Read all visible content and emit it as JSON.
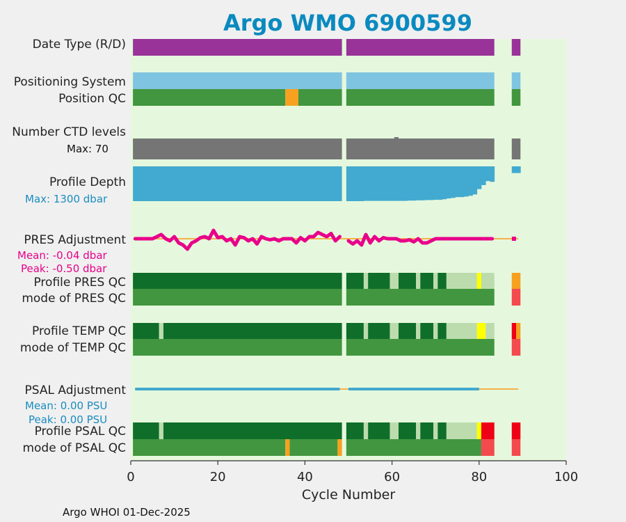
{
  "title": "Argo WMO 6900599",
  "footer": "Argo WHOI 01-Dec-2025",
  "colors": {
    "title": "#0a8abf",
    "panel_bg": "#e5f8dd",
    "data_type": "#993399",
    "positioning": "#7fc4e0",
    "qc_good": "#42963f",
    "qc_dark": "#0f6e2a",
    "qc_light": "#bcdcae",
    "qc_orange": "#f6a11f",
    "qc_yellow": "#ffff00",
    "qc_red": "#ee0016",
    "qc_redsoft": "#f44a4d",
    "ctd": "#757575",
    "depth": "#42aad0",
    "pres_adj": "#e8008a",
    "psal_adj": "#42aad0",
    "zero_line": "#f6b04a"
  },
  "labels": {
    "date_type": "Date Type (R/D)",
    "positioning_system": "Positioning System",
    "position_qc": "Position QC",
    "number_ctd": "Number CTD levels",
    "ctd_max": "Max: 70",
    "profile_depth": "Profile Depth",
    "depth_max": "Max: 1300 dbar",
    "pres_adjustment": "PRES Adjustment",
    "pres_mean": "Mean: -0.04 dbar",
    "pres_peak": "Peak: -0.50 dbar",
    "profile_pres_qc": "Profile PRES QC",
    "mode_pres_qc": "mode of PRES QC",
    "profile_temp_qc": "Profile TEMP QC",
    "mode_temp_qc": "mode of TEMP QC",
    "psal_adjustment": "PSAL Adjustment",
    "psal_mean": "Mean: 0.00 PSU",
    "psal_peak": "Peak: 0.00 PSU",
    "profile_psal_qc": "Profile PSAL QC",
    "mode_psal_qc": "mode of PSAL QC"
  },
  "chart_data": {
    "type": "status-strip",
    "xlabel": "Cycle Number",
    "xlim": [
      0,
      100
    ],
    "xticks": [
      0,
      20,
      40,
      60,
      80,
      100
    ],
    "grid": false,
    "rows": [
      {
        "key": "date_type",
        "segments": [
          [
            0.5,
            48.5,
            "data_type"
          ],
          [
            49.5,
            83.5,
            "data_type"
          ],
          [
            87.5,
            89.5,
            "data_type"
          ]
        ]
      },
      {
        "key": "positioning",
        "segments": [
          [
            0.5,
            48.5,
            "positioning"
          ],
          [
            49.5,
            83.5,
            "positioning"
          ],
          [
            87.5,
            89.5,
            "positioning"
          ]
        ]
      },
      {
        "key": "position_qc",
        "segments": [
          [
            0.5,
            35.5,
            "qc_good"
          ],
          [
            35.5,
            38.5,
            "qc_orange"
          ],
          [
            38.5,
            48.5,
            "qc_good"
          ],
          [
            49.5,
            83.5,
            "qc_good"
          ],
          [
            87.5,
            89.5,
            "qc_good"
          ]
        ]
      },
      {
        "key": "ctd_levels",
        "segments": [
          [
            0.5,
            48.5,
            "ctd"
          ],
          [
            49.5,
            83.5,
            "ctd"
          ],
          [
            87.5,
            89.5,
            "ctd"
          ]
        ]
      },
      {
        "key": "profile_pres_qc",
        "segments": [
          [
            0.5,
            48.5,
            "qc_dark"
          ],
          [
            49.5,
            53.5,
            "qc_dark"
          ],
          [
            53.5,
            54.5,
            "qc_light"
          ],
          [
            54.5,
            59.5,
            "qc_dark"
          ],
          [
            59.5,
            61.5,
            "qc_light"
          ],
          [
            61.5,
            65.5,
            "qc_dark"
          ],
          [
            65.5,
            66.5,
            "qc_light"
          ],
          [
            66.5,
            69.5,
            "qc_dark"
          ],
          [
            69.5,
            70.5,
            "qc_light"
          ],
          [
            70.5,
            72.5,
            "qc_dark"
          ],
          [
            72.5,
            79.5,
            "qc_light"
          ],
          [
            79.5,
            80.5,
            "qc_yellow"
          ],
          [
            80.5,
            83.5,
            "qc_light"
          ],
          [
            87.5,
            89.5,
            "qc_orange"
          ]
        ]
      },
      {
        "key": "mode_pres_qc",
        "segments": [
          [
            0.5,
            48.5,
            "qc_good"
          ],
          [
            49.5,
            83.5,
            "qc_good"
          ],
          [
            87.5,
            89.5,
            "qc_redsoft"
          ]
        ]
      },
      {
        "key": "profile_temp_qc",
        "segments": [
          [
            0.5,
            6.5,
            "qc_dark"
          ],
          [
            6.5,
            7.5,
            "qc_light"
          ],
          [
            7.5,
            48.5,
            "qc_dark"
          ],
          [
            49.5,
            53.5,
            "qc_dark"
          ],
          [
            53.5,
            54.5,
            "qc_light"
          ],
          [
            54.5,
            59.5,
            "qc_dark"
          ],
          [
            59.5,
            61.5,
            "qc_light"
          ],
          [
            61.5,
            65.5,
            "qc_dark"
          ],
          [
            65.5,
            66.5,
            "qc_light"
          ],
          [
            66.5,
            69.5,
            "qc_dark"
          ],
          [
            69.5,
            70.5,
            "qc_light"
          ],
          [
            70.5,
            72.5,
            "qc_dark"
          ],
          [
            72.5,
            79.5,
            "qc_light"
          ],
          [
            79.5,
            81.5,
            "qc_yellow"
          ],
          [
            81.5,
            83.5,
            "qc_light"
          ],
          [
            87.5,
            88.5,
            "qc_red"
          ],
          [
            88.5,
            89.5,
            "qc_orange"
          ]
        ]
      },
      {
        "key": "mode_temp_qc",
        "segments": [
          [
            0.5,
            48.5,
            "qc_good"
          ],
          [
            49.5,
            83.5,
            "qc_good"
          ],
          [
            87.5,
            89.5,
            "qc_redsoft"
          ]
        ]
      },
      {
        "key": "profile_psal_qc",
        "segments": [
          [
            0.5,
            6.5,
            "qc_dark"
          ],
          [
            6.5,
            7.5,
            "qc_light"
          ],
          [
            7.5,
            48.5,
            "qc_dark"
          ],
          [
            49.5,
            53.5,
            "qc_dark"
          ],
          [
            53.5,
            54.5,
            "qc_light"
          ],
          [
            54.5,
            59.5,
            "qc_dark"
          ],
          [
            59.5,
            61.5,
            "qc_light"
          ],
          [
            61.5,
            65.5,
            "qc_dark"
          ],
          [
            65.5,
            66.5,
            "qc_light"
          ],
          [
            66.5,
            69.5,
            "qc_dark"
          ],
          [
            69.5,
            70.5,
            "qc_light"
          ],
          [
            70.5,
            72.5,
            "qc_dark"
          ],
          [
            72.5,
            79.5,
            "qc_light"
          ],
          [
            79.5,
            80.5,
            "qc_yellow"
          ],
          [
            80.5,
            83.5,
            "qc_red"
          ],
          [
            87.5,
            89.5,
            "qc_red"
          ]
        ]
      },
      {
        "key": "mode_psal_qc",
        "segments": [
          [
            0.5,
            35.5,
            "qc_good"
          ],
          [
            35.5,
            36.5,
            "qc_orange"
          ],
          [
            36.5,
            47.5,
            "qc_good"
          ],
          [
            47.5,
            48.5,
            "qc_orange"
          ],
          [
            49.5,
            80.5,
            "qc_good"
          ],
          [
            80.5,
            83.5,
            "qc_redsoft"
          ],
          [
            87.5,
            89.5,
            "qc_redsoft"
          ]
        ]
      }
    ],
    "profile_depth": {
      "max_dbar": 1300,
      "cycles_full": [
        [
          0.5,
          48.5
        ]
      ],
      "cycles": [
        50,
        51,
        52,
        53,
        54,
        55,
        56,
        57,
        58,
        59,
        60,
        61,
        62,
        63,
        64,
        65,
        66,
        67,
        68,
        69,
        70,
        71,
        72,
        73,
        74,
        75,
        76,
        77,
        78,
        79,
        80,
        81,
        82,
        83
      ],
      "depth_dbar": [
        1300,
        1300,
        1300,
        1300,
        1290,
        1290,
        1290,
        1290,
        1290,
        1290,
        1290,
        1290,
        1290,
        1290,
        1280,
        1280,
        1270,
        1270,
        1260,
        1260,
        1250,
        1250,
        1230,
        1200,
        1180,
        1150,
        1150,
        1130,
        1100,
        1050,
        850,
        700,
        550,
        580
      ],
      "late": [
        {
          "cycle": 88,
          "depth_dbar": 250
        },
        {
          "cycle": 89,
          "depth_dbar": 250
        }
      ]
    },
    "pres_adjustment": {
      "unit": "dbar",
      "mean": -0.04,
      "peak": -0.5,
      "ylim": [
        -0.6,
        0.6
      ],
      "x": [
        1,
        2,
        3,
        4,
        5,
        6,
        7,
        8,
        9,
        10,
        11,
        12,
        13,
        14,
        15,
        16,
        17,
        18,
        19,
        20,
        21,
        22,
        23,
        24,
        25,
        26,
        27,
        28,
        29,
        30,
        31,
        32,
        33,
        34,
        35,
        36,
        37,
        38,
        39,
        40,
        41,
        42,
        43,
        44,
        45,
        46,
        47,
        48,
        50,
        51,
        52,
        53,
        54,
        55,
        56,
        57,
        58,
        59,
        60,
        61,
        62,
        63,
        64,
        65,
        66,
        67,
        68,
        69,
        70,
        71,
        72,
        73,
        74,
        75,
        76,
        77,
        78,
        79,
        80,
        81,
        82,
        83,
        88
      ],
      "y": [
        0,
        0,
        0,
        0,
        0,
        0.1,
        0.2,
        0,
        -0.1,
        0.1,
        -0.2,
        -0.3,
        -0.5,
        -0.2,
        -0.1,
        0.05,
        0.1,
        0,
        0.4,
        0.05,
        0.1,
        -0.1,
        0,
        -0.3,
        0.1,
        0.05,
        -0.1,
        0,
        -0.25,
        0.1,
        0,
        -0.05,
        0,
        -0.1,
        0,
        0,
        0,
        -0.2,
        0.05,
        -0.1,
        0.1,
        0.1,
        0.3,
        0.2,
        0.1,
        0.25,
        -0.1,
        0.1,
        -0.1,
        -0.25,
        -0.1,
        -0.3,
        0.2,
        -0.2,
        0.1,
        -0.1,
        0.05,
        0,
        0,
        0,
        -0.1,
        -0.1,
        -0.05,
        -0.15,
        0,
        -0.2,
        -0.2,
        -0.1,
        0,
        0,
        0,
        0,
        0,
        0,
        0,
        0,
        0,
        0,
        0,
        0,
        0,
        0,
        0
      ]
    },
    "psal_adjustment": {
      "unit": "PSU",
      "mean": 0.0,
      "peak": 0.0,
      "segments": [
        [
          1,
          48
        ],
        [
          50,
          80
        ]
      ],
      "baseline": [
        1,
        89
      ]
    }
  }
}
